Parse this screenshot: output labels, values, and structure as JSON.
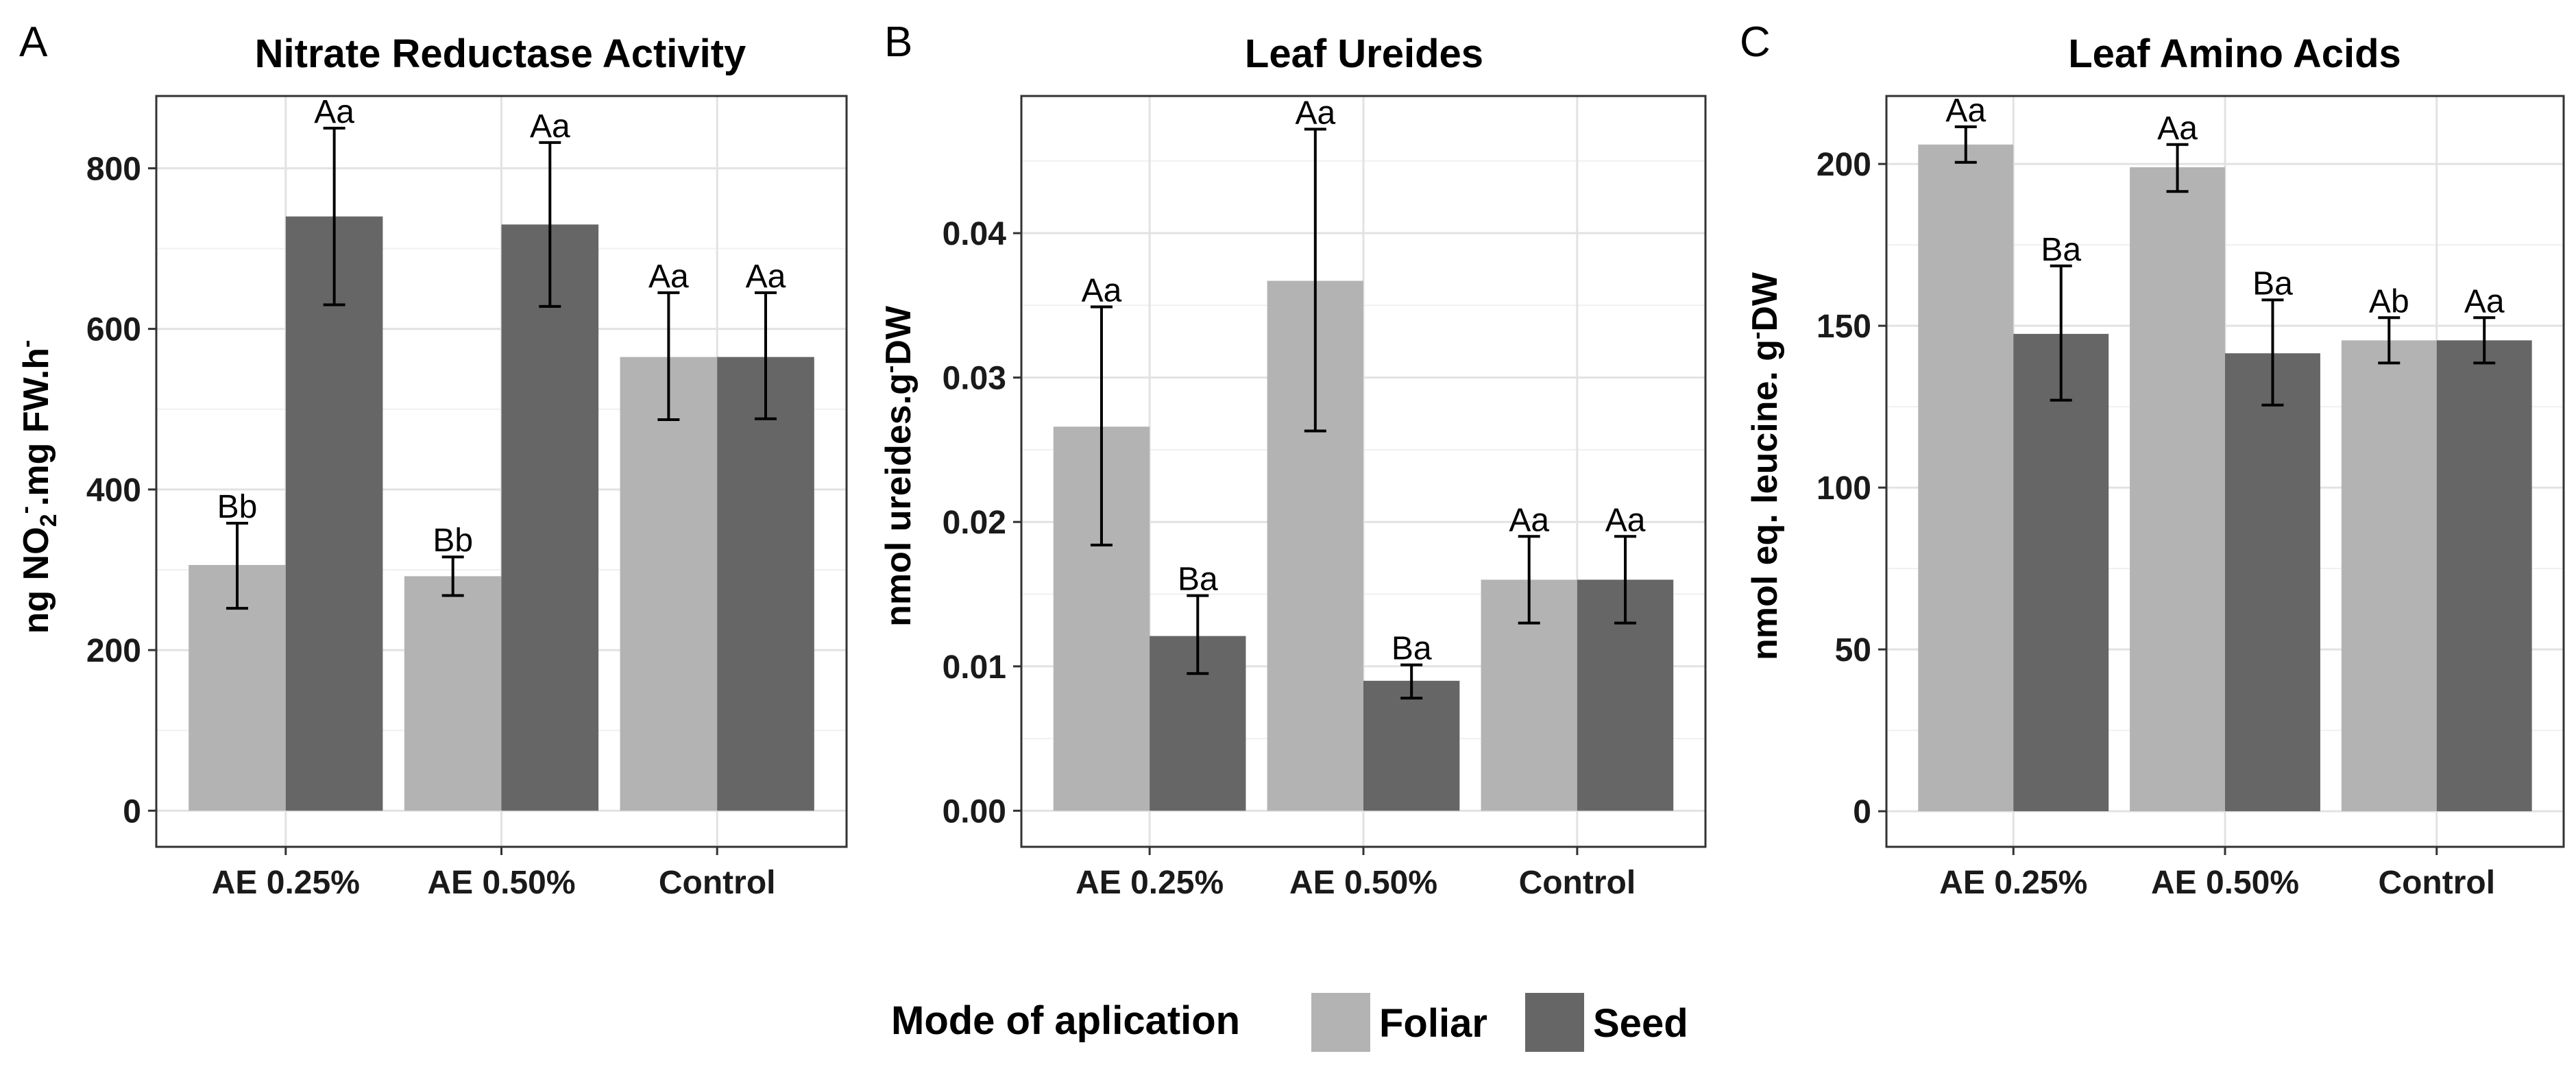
{
  "colors": {
    "foliar": "#b3b3b3",
    "seed": "#666666",
    "grid_major": "#e2e2e2",
    "grid_minor": "#f0f0f0",
    "axis": "#333333"
  },
  "legend": {
    "title": "Mode of aplication",
    "items": [
      "Foliar",
      "Seed"
    ]
  },
  "chart_data": [
    {
      "letter": "A",
      "type": "bar",
      "title": "Nitrate Reductase Activity",
      "ylabel_parts": {
        "ng": "ng NO",
        "sub": "2",
        "supminus": "-",
        "mid": ".mg FW.h",
        "end": "-"
      },
      "categories": [
        "AE 0.25%",
        "AE 0.50%",
        "Control"
      ],
      "ylim": [
        -45,
        890
      ],
      "yticks": [
        "0",
        "200",
        "400",
        "600",
        "800"
      ],
      "series": [
        {
          "name": "Foliar",
          "values": [
            306,
            292,
            565
          ],
          "err_low": [
            252,
            268,
            487
          ],
          "err_high": [
            358,
            316,
            645
          ],
          "labels": [
            "Bb",
            "Bb",
            "Aa"
          ]
        },
        {
          "name": "Seed",
          "values": [
            740,
            730,
            565
          ],
          "err_low": [
            630,
            628,
            488
          ],
          "err_high": [
            850,
            832,
            645
          ],
          "labels": [
            "Aa",
            "Aa",
            "Aa"
          ]
        }
      ]
    },
    {
      "letter": "B",
      "type": "bar",
      "title": "Leaf Ureides",
      "ylabel_parts": {
        "pre": "nmol ureides.g",
        "sup": "-",
        "post": "DW"
      },
      "categories": [
        "AE 0.25%",
        "AE 0.50%",
        "Control"
      ],
      "ylim": [
        -0.0025,
        0.0495
      ],
      "yticks": [
        "0.00",
        "0.01",
        "0.02",
        "0.03",
        "0.04"
      ],
      "series": [
        {
          "name": "Foliar",
          "values": [
            0.0266,
            0.0367,
            0.016
          ],
          "err_low": [
            0.0184,
            0.0263,
            0.013
          ],
          "err_high": [
            0.0349,
            0.0472,
            0.019
          ],
          "labels": [
            "Aa",
            "Aa",
            "Aa"
          ]
        },
        {
          "name": "Seed",
          "values": [
            0.0121,
            0.009,
            0.016
          ],
          "err_low": [
            0.0095,
            0.0078,
            0.013
          ],
          "err_high": [
            0.0149,
            0.0101,
            0.019
          ],
          "labels": [
            "Ba",
            "Ba",
            "Aa"
          ]
        }
      ]
    },
    {
      "letter": "C",
      "type": "bar",
      "title": "Leaf Amino Acids",
      "ylabel_parts": {
        "pre": "nmol eq. leucine. g",
        "sup": "-",
        "post": "DW"
      },
      "categories": [
        "AE 0.25%",
        "AE 0.50%",
        "Control"
      ],
      "ylim": [
        -11,
        221
      ],
      "yticks": [
        "0",
        "50",
        "100",
        "150",
        "200"
      ],
      "series": [
        {
          "name": "Foliar",
          "values": [
            206,
            199,
            145.5
          ],
          "err_low": [
            200.5,
            191.5,
            138.5
          ],
          "err_high": [
            211.5,
            206,
            152.5
          ],
          "labels": [
            "Aa",
            "Aa",
            "Ab"
          ]
        },
        {
          "name": "Seed",
          "values": [
            147.5,
            141.5,
            145.5
          ],
          "err_low": [
            127,
            125.5,
            138.5
          ],
          "err_high": [
            168.5,
            158,
            152.5
          ],
          "labels": [
            "Ba",
            "Ba",
            "Aa"
          ]
        }
      ]
    }
  ]
}
